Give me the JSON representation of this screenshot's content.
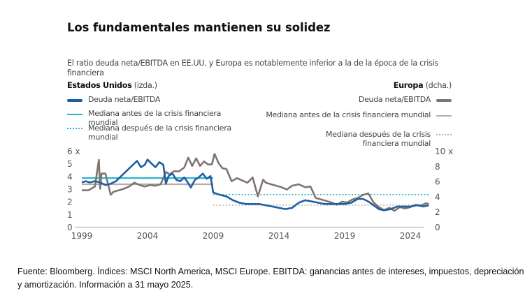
{
  "title": "Los fundamentales mantienen su solidez",
  "subtitle": "El ratio deuda neta/EBITDA en EE.UU. y Europa es notablemente inferior a la de la época de la crisis financiera",
  "left_axis_title": {
    "bold": "Estados Unidos",
    "rest": " (izda.)"
  },
  "right_axis_title": {
    "bold": "Europa",
    "rest": " (dcha.)"
  },
  "legend_left": [
    {
      "label": "Deuda neta/EBITDA",
      "style": "thick",
      "color": "#1f5fa0"
    },
    {
      "label": "Mediana antes de la crisis financiera mundial",
      "style": "thin",
      "color": "#29b6d2"
    },
    {
      "label": "Mediana después de la crisis financiera mundial",
      "style": "dotted",
      "color": "#29b6d2"
    }
  ],
  "legend_right": [
    {
      "label": "Deuda neta/EBITDA",
      "style": "thick",
      "color": "#7f7571"
    },
    {
      "label": "Mediana antes de la crisis financiera mundial",
      "style": "thin",
      "color": "#b5aeab"
    },
    {
      "label": "Mediana después de la crisis financiera mundial",
      "style": "dotted",
      "color": "#b5aeab"
    }
  ],
  "footer": "Fuente: Bloomberg. Índices: MSCI North America, MSCI Europe. EBITDA: ganancias antes de intereses, impuestos, depreciación y amortización. Información a 31 mayo 2025.",
  "chart_data": {
    "type": "line",
    "title": "Los fundamentales mantienen su solidez",
    "subtitle": "El ratio deuda neta/EBITDA en EE.UU. y Europa es notablemente inferior a la de la época de la crisis financiera",
    "x_ticks": [
      "1999",
      "2004",
      "2009",
      "2014",
      "2019",
      "2024"
    ],
    "x_range": [
      1999,
      2025.4
    ],
    "y_left": {
      "label": "Estados Unidos (izda.)",
      "ticks": [
        "0",
        "1",
        "2",
        "3",
        "4",
        "5",
        "6 x"
      ],
      "range": [
        0,
        6
      ]
    },
    "y_right": {
      "label": "Europa (dcha.)",
      "ticks": [
        "0",
        "2",
        "4",
        "6",
        "8",
        "10 x"
      ],
      "range": [
        0,
        10
      ]
    },
    "grid": false,
    "series": [
      {
        "name": "Estados Unidos - Deuda neta/EBITDA",
        "axis": "left",
        "color": "#1f5fa0",
        "x": [
          1999.0,
          1999.3,
          1999.6,
          2000.0,
          2000.4,
          2000.8,
          2001.2,
          2001.6,
          2002.0,
          2002.3,
          2002.6,
          2002.9,
          2003.2,
          2003.5,
          2003.8,
          2004.0,
          2004.3,
          2004.6,
          2004.9,
          2005.2,
          2005.4,
          2005.6,
          2005.9,
          2006.2,
          2006.5,
          2006.8,
          2007.0,
          2007.3,
          2007.6,
          2007.9,
          2008.2,
          2008.5,
          2008.8,
          2009.0,
          2009.3,
          2009.6,
          2010.0,
          2010.5,
          2011.0,
          2011.5,
          2012.0,
          2012.5,
          2013.0,
          2013.5,
          2014.0,
          2014.5,
          2015.0,
          2015.5,
          2016.0,
          2016.5,
          2017.0,
          2017.5,
          2018.0,
          2018.5,
          2019.0,
          2019.5,
          2020.0,
          2020.4,
          2020.8,
          2021.2,
          2021.6,
          2022.0,
          2022.5,
          2023.0,
          2023.5,
          2024.0,
          2024.5,
          2025.0,
          2025.4
        ],
        "y": [
          3.5,
          3.6,
          3.5,
          3.6,
          3.5,
          3.3,
          3.4,
          3.6,
          4.0,
          4.3,
          4.6,
          4.9,
          5.2,
          4.7,
          4.9,
          5.3,
          5.0,
          4.7,
          5.1,
          4.9,
          3.4,
          4.0,
          4.2,
          3.7,
          3.6,
          3.9,
          3.6,
          3.1,
          3.7,
          3.9,
          4.2,
          3.8,
          4.0,
          2.7,
          2.6,
          2.5,
          2.4,
          2.1,
          1.9,
          1.8,
          1.8,
          1.8,
          1.7,
          1.6,
          1.5,
          1.4,
          1.5,
          1.9,
          2.1,
          2.0,
          1.9,
          1.8,
          1.8,
          1.8,
          1.8,
          1.9,
          2.2,
          2.2,
          2.0,
          1.7,
          1.4,
          1.3,
          1.4,
          1.6,
          1.6,
          1.6,
          1.7,
          1.6,
          1.7
        ]
      },
      {
        "name": "Estados Unidos - Mediana antes de la crisis financiera mundial",
        "axis": "left",
        "color": "#29b6d2",
        "x": [
          1999.0,
          2009.0
        ],
        "y": [
          3.85,
          3.85
        ]
      },
      {
        "name": "Estados Unidos - Mediana después de la crisis financiera mundial",
        "axis": "left",
        "color": "#29b6d2",
        "dash": "dotted",
        "x": [
          2009.0,
          2025.4
        ],
        "y": [
          2.55,
          2.55
        ]
      },
      {
        "name": "Europa - Deuda neta/EBITDA",
        "axis": "right",
        "color": "#7f7571",
        "x": [
          1999.0,
          1999.5,
          2000.0,
          2000.3,
          2000.4,
          2000.5,
          2000.8,
          2001.2,
          2001.4,
          2001.8,
          2002.2,
          2002.6,
          2003.0,
          2003.4,
          2003.8,
          2004.2,
          2004.6,
          2005.0,
          2005.4,
          2005.7,
          2006.0,
          2006.4,
          2006.8,
          2007.1,
          2007.4,
          2007.7,
          2008.0,
          2008.3,
          2008.6,
          2008.9,
          2009.1,
          2009.4,
          2009.7,
          2010.0,
          2010.4,
          2010.8,
          2011.2,
          2011.6,
          2012.0,
          2012.4,
          2012.8,
          2013.0,
          2013.4,
          2013.8,
          2014.2,
          2014.6,
          2015.0,
          2015.5,
          2016.0,
          2016.4,
          2016.8,
          2017.2,
          2017.6,
          2018.0,
          2018.4,
          2018.8,
          2019.2,
          2019.6,
          2020.0,
          2020.4,
          2020.8,
          2021.2,
          2021.6,
          2022.0,
          2022.4,
          2022.8,
          2023.2,
          2023.6,
          2024.0,
          2024.4,
          2024.8,
          2025.2,
          2025.4
        ],
        "y": [
          4.8,
          4.8,
          5.3,
          8.8,
          5.0,
          7.0,
          7.0,
          4.2,
          4.6,
          4.8,
          5.0,
          5.3,
          5.8,
          5.5,
          5.3,
          5.5,
          5.4,
          5.6,
          7.2,
          6.9,
          7.3,
          7.3,
          7.8,
          9.1,
          8.0,
          9.0,
          8.0,
          8.6,
          8.2,
          8.2,
          9.6,
          8.4,
          7.7,
          7.6,
          6.0,
          6.4,
          6.1,
          5.8,
          6.5,
          4.0,
          6.2,
          5.8,
          5.6,
          5.4,
          5.2,
          4.9,
          5.4,
          5.6,
          5.2,
          5.3,
          3.8,
          3.6,
          3.4,
          3.2,
          2.9,
          3.3,
          3.2,
          3.6,
          3.8,
          4.2,
          4.4,
          3.2,
          2.6,
          2.2,
          2.5,
          2.1,
          2.6,
          2.4,
          2.6,
          2.9,
          2.8,
          3.1,
          3.0
        ]
      },
      {
        "name": "Europa - Mediana antes de la crisis financiera mundial",
        "axis": "right",
        "color": "#b5aeab",
        "x": [
          1999.0,
          2009.0
        ],
        "y": [
          5.6,
          5.6
        ]
      },
      {
        "name": "Europa - Mediana después de la crisis financiera mundial",
        "axis": "right",
        "color": "#b5aeab",
        "dash": "dotted",
        "x": [
          2009.0,
          2025.4
        ],
        "y": [
          2.85,
          2.85
        ]
      }
    ],
    "legend_placement": "top"
  }
}
